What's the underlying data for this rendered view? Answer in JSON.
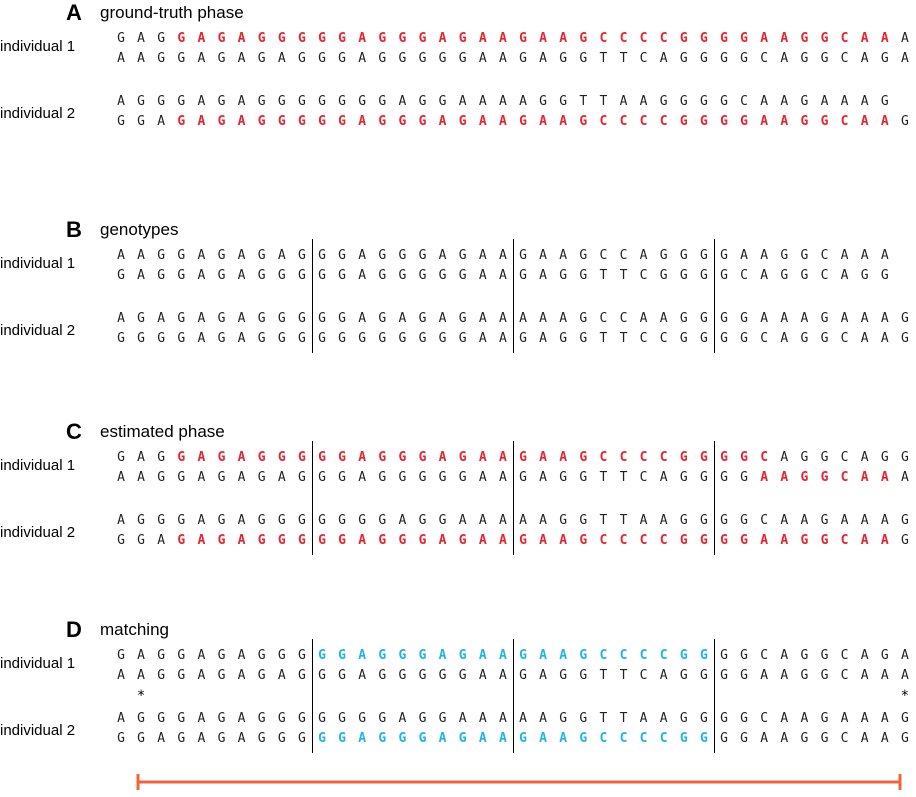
{
  "individual_labels": [
    "individual 1",
    "individual 2"
  ],
  "colors": {
    "normal": "#222222",
    "red": "#e8242f",
    "cyan": "#1fb5e3",
    "bracket": "#f0643c"
  },
  "panels": [
    {
      "letter": "A",
      "title": "ground-truth phase",
      "rows": [
        {
          "seq": "GAGGAGAGGGGGAGGGAGAAGAAGCCCCGGGGAAGGCAAA",
          "hl": [
            [
              3,
              38,
              "red"
            ]
          ]
        },
        {
          "seq": "AAGGAGAGAGGGAGGGGGAAGAGGTTCAGGGGCAGGCAGA",
          "hl": []
        },
        {
          "seq": "AGGGAGAGGGGGGGAGGAAAAGGTTAAGGGGCAAGAAAG",
          "hl": []
        },
        {
          "seq": "GGAGAGAGGGGGAGGGAGAAGAAGCCCCGGGGAAGGCAAG",
          "hl": [
            [
              3,
              38,
              "red"
            ]
          ]
        }
      ],
      "dividers": false
    },
    {
      "letter": "B",
      "title": "genotypes",
      "rows": [
        {
          "seq": "AAGGAGAGAGGGAGGGAGAAGAAGCCAGGGGAAGGCAAA",
          "hl": []
        },
        {
          "seq": "GAGGAGAGGGGGAGGGGGAAGAGGTTCGGGGCAGGCAGG",
          "hl": []
        },
        {
          "seq": "AGAGAGAGGGGGAGAGAGAAAAAGCCAAGGGGAAAGAAAG",
          "hl": []
        },
        {
          "seq": "GGGGAGAGGGGGGGGGGGAAGAGGTTCCGGGGCAGGCAAG",
          "hl": []
        }
      ],
      "dividers": true
    },
    {
      "letter": "C",
      "title": "estimated phase",
      "rows": [
        {
          "seq": "GAGGAGAGGGGGAGGGAGAAGAAGCCCCGGGGCAGGCAGG",
          "hl": [
            [
              3,
              32,
              "red"
            ]
          ]
        },
        {
          "seq": "AAGGAGAGAGGGAGGGGGAAGAGGTTCAGGGGAAGGCAAA",
          "hl": [
            [
              32,
              38,
              "red"
            ]
          ]
        },
        {
          "seq": "AGGGAGAGGGGGGGAGGAAAAAGGTTAAGGGGCAAGAAAG",
          "hl": []
        },
        {
          "seq": "GGAGAGAGGGGGAGGGAGAAGAAGCCCCGGGGAAGGCAAG",
          "hl": [
            [
              3,
              38,
              "red"
            ]
          ]
        }
      ],
      "dividers": true
    },
    {
      "letter": "D",
      "title": "matching",
      "rows": [
        {
          "seq": "GAGGAGAGGGGGAGGGAGAAGAAGCCCCGGGGCAGGCAGA",
          "hl": [
            [
              10,
              29,
              "cyan"
            ]
          ]
        },
        {
          "seq": "AAGGAGAGAGGGAGGGGGAAGAGGTTCAGGGGAAGGCAAA",
          "hl": []
        },
        {
          "seq": "AGGGAGAGGGGGGGAGGAAAAAGGTTAAGGGGCAAGAAAG",
          "hl": []
        },
        {
          "seq": "GGAGAGAGGGGGAGGGAGAAGAAGCCCCGGGGAAGGCAAG",
          "hl": [
            [
              10,
              29,
              "cyan"
            ]
          ]
        }
      ],
      "dividers": true,
      "stars": [
        1,
        39
      ],
      "star_glyph": "*"
    }
  ]
}
